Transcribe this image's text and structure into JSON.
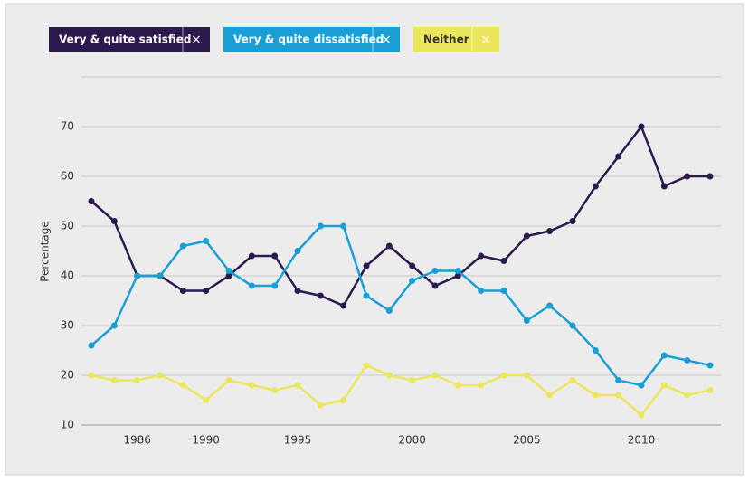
{
  "chart_data": {
    "type": "line",
    "y_label": "Percentage",
    "legend_close": "×",
    "categories": [
      null,
      null,
      "1986",
      null,
      null,
      "1990",
      null,
      null,
      null,
      "1995",
      null,
      null,
      null,
      null,
      "2000",
      null,
      null,
      null,
      null,
      "2005",
      null,
      null,
      null,
      null,
      "2010",
      null,
      null,
      null
    ],
    "series": [
      {
        "name": "Very & quite satisfied",
        "color": "#2c1a4f",
        "values": [
          55,
          51,
          40,
          40,
          37,
          37,
          40,
          44,
          44,
          37,
          36,
          34,
          42,
          46,
          42,
          38,
          40,
          44,
          43,
          48,
          49,
          51,
          58,
          64,
          70,
          58,
          60,
          60
        ]
      },
      {
        "name": "Very & quite dissatisfied",
        "color": "#1a9fd4",
        "values": [
          26,
          30,
          40,
          40,
          46,
          47,
          41,
          38,
          38,
          45,
          50,
          50,
          36,
          33,
          39,
          41,
          41,
          37,
          37,
          31,
          34,
          30,
          25,
          19,
          18,
          24,
          23,
          22
        ]
      },
      {
        "name": "Neither",
        "color": "#ebe65c",
        "values": [
          20,
          19,
          19,
          20,
          18,
          15,
          19,
          18,
          17,
          18,
          14,
          15,
          22,
          20,
          19,
          20,
          18,
          18,
          20,
          20,
          16,
          19,
          16,
          16,
          12,
          18,
          16,
          17
        ]
      }
    ],
    "ylim": [
      10,
      80
    ],
    "yticks": [
      10,
      20,
      30,
      40,
      50,
      60,
      70
    ],
    "grid": true
  }
}
